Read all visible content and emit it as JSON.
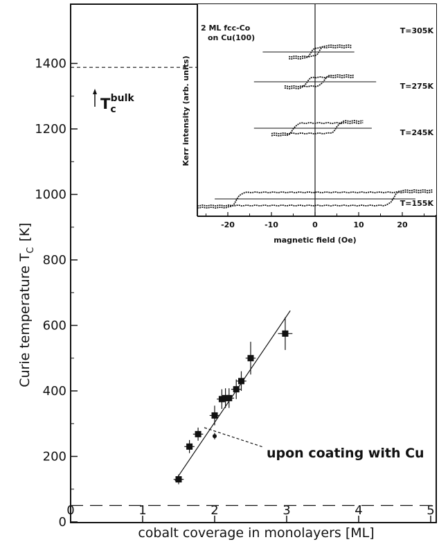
{
  "chart_data": [
    {
      "type": "scatter",
      "xlabel": "cobalt coverage in monolayers [ML]",
      "ylabel": "Curie temperature T",
      "ylabel_sub": "C",
      "ylabel_unit": "[K]",
      "xlim": [
        0,
        5.7
      ],
      "ylim": [
        0,
        1600
      ],
      "xticks": [
        0,
        1,
        2,
        3,
        4,
        5
      ],
      "yticks": [
        0,
        200,
        400,
        600,
        800,
        1000,
        1200,
        1400
      ],
      "grid": false,
      "series": [
        {
          "values_x": [
            1.5,
            1.65,
            1.77,
            2.0,
            2.1,
            2.15,
            2.2,
            2.3,
            2.37,
            2.5,
            2.98
          ],
          "values_y": [
            130,
            230,
            268,
            325,
            375,
            378,
            378,
            405,
            430,
            500,
            575
          ],
          "xerr": [
            0.07,
            0.07,
            0.07,
            0.07,
            0.07,
            0.07,
            0.07,
            0.07,
            0.07,
            0.07,
            0.1
          ],
          "yerr": [
            15,
            20,
            20,
            30,
            30,
            30,
            30,
            30,
            30,
            50,
            50
          ]
        }
      ],
      "coated_point": {
        "x": 2.0,
        "y": 262
      },
      "fit_line": {
        "x": [
          1.45,
          3.05
        ],
        "y": [
          125,
          645
        ]
      },
      "bulk_line_y": 1388,
      "low_line_y": 50,
      "annotations": {
        "bulk_main": "T",
        "bulk_sub": "c",
        "bulk_sup": "bulk",
        "coating": "upon coating with Cu"
      }
    },
    {
      "type": "line",
      "title_line1": "2 ML fcc-Co",
      "title_line2": "on Cu(100)",
      "xlabel": "magnetic field (Oe)",
      "ylabel": "Kerr intensity (arb. units)",
      "xlim": [
        -27,
        27
      ],
      "xticks": [
        -20,
        -10,
        0,
        10,
        20
      ],
      "loops": [
        {
          "label": "T=305K",
          "hc": 1.0,
          "half_width": 1.6,
          "xmin": -6,
          "xmax": 8.5,
          "step": 0.55
        },
        {
          "label": "T=275K",
          "hc": 2.0,
          "half_width": 1.6,
          "xmin": -7,
          "xmax": 9,
          "step": 0.55
        },
        {
          "label": "T=245K",
          "hc": 5.0,
          "half_width": 1.8,
          "xmin": -10,
          "xmax": 11,
          "step": 0.5
        },
        {
          "label": "T=155K",
          "hc": 18.0,
          "half_width": 2.0,
          "xmin": -27,
          "xmax": 27,
          "step": 0.6
        }
      ]
    }
  ]
}
